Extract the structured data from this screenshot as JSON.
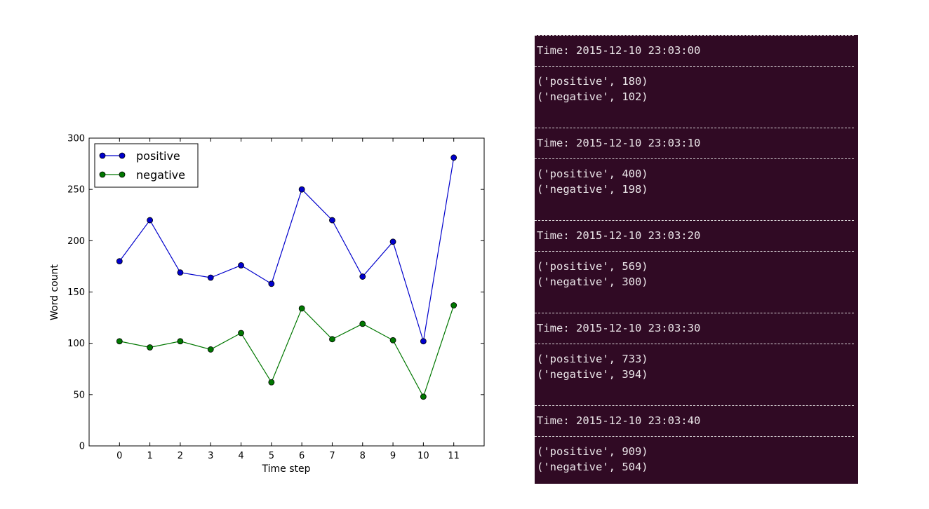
{
  "chart_data": {
    "type": "line",
    "x": [
      0,
      1,
      2,
      3,
      4,
      5,
      6,
      7,
      8,
      9,
      10,
      11
    ],
    "series": [
      {
        "name": "positive",
        "color": "#0000cc",
        "values": [
          180,
          220,
          169,
          164,
          176,
          158,
          250,
          220,
          165,
          199,
          102,
          281
        ]
      },
      {
        "name": "negative",
        "color": "#007700",
        "values": [
          102,
          96,
          102,
          94,
          110,
          62,
          134,
          104,
          119,
          103,
          48,
          137
        ]
      }
    ],
    "title": "",
    "xlabel": "Time step",
    "ylabel": "Word count",
    "xlim": [
      -1,
      12
    ],
    "ylim": [
      0,
      300
    ],
    "xticks": [
      "0",
      "1",
      "2",
      "3",
      "4",
      "5",
      "6",
      "7",
      "8",
      "9",
      "10",
      "11"
    ],
    "yticks": [
      "0",
      "50",
      "100",
      "150",
      "200",
      "250",
      "300"
    ],
    "legend_position": "top-left",
    "grid": false
  },
  "terminal": {
    "background": "#300a24",
    "entries": [
      {
        "time": "Time: 2015-12-10 23:03:00",
        "lines": [
          "('positive', 180)",
          "('negative', 102)"
        ]
      },
      {
        "time": "Time: 2015-12-10 23:03:10",
        "lines": [
          "('positive', 400)",
          "('negative', 198)"
        ]
      },
      {
        "time": "Time: 2015-12-10 23:03:20",
        "lines": [
          "('positive', 569)",
          "('negative', 300)"
        ]
      },
      {
        "time": "Time: 2015-12-10 23:03:30",
        "lines": [
          "('positive', 733)",
          "('negative', 394)"
        ]
      },
      {
        "time": "Time: 2015-12-10 23:03:40",
        "lines": [
          "('positive', 909)",
          "('negative', 504)"
        ]
      }
    ]
  }
}
